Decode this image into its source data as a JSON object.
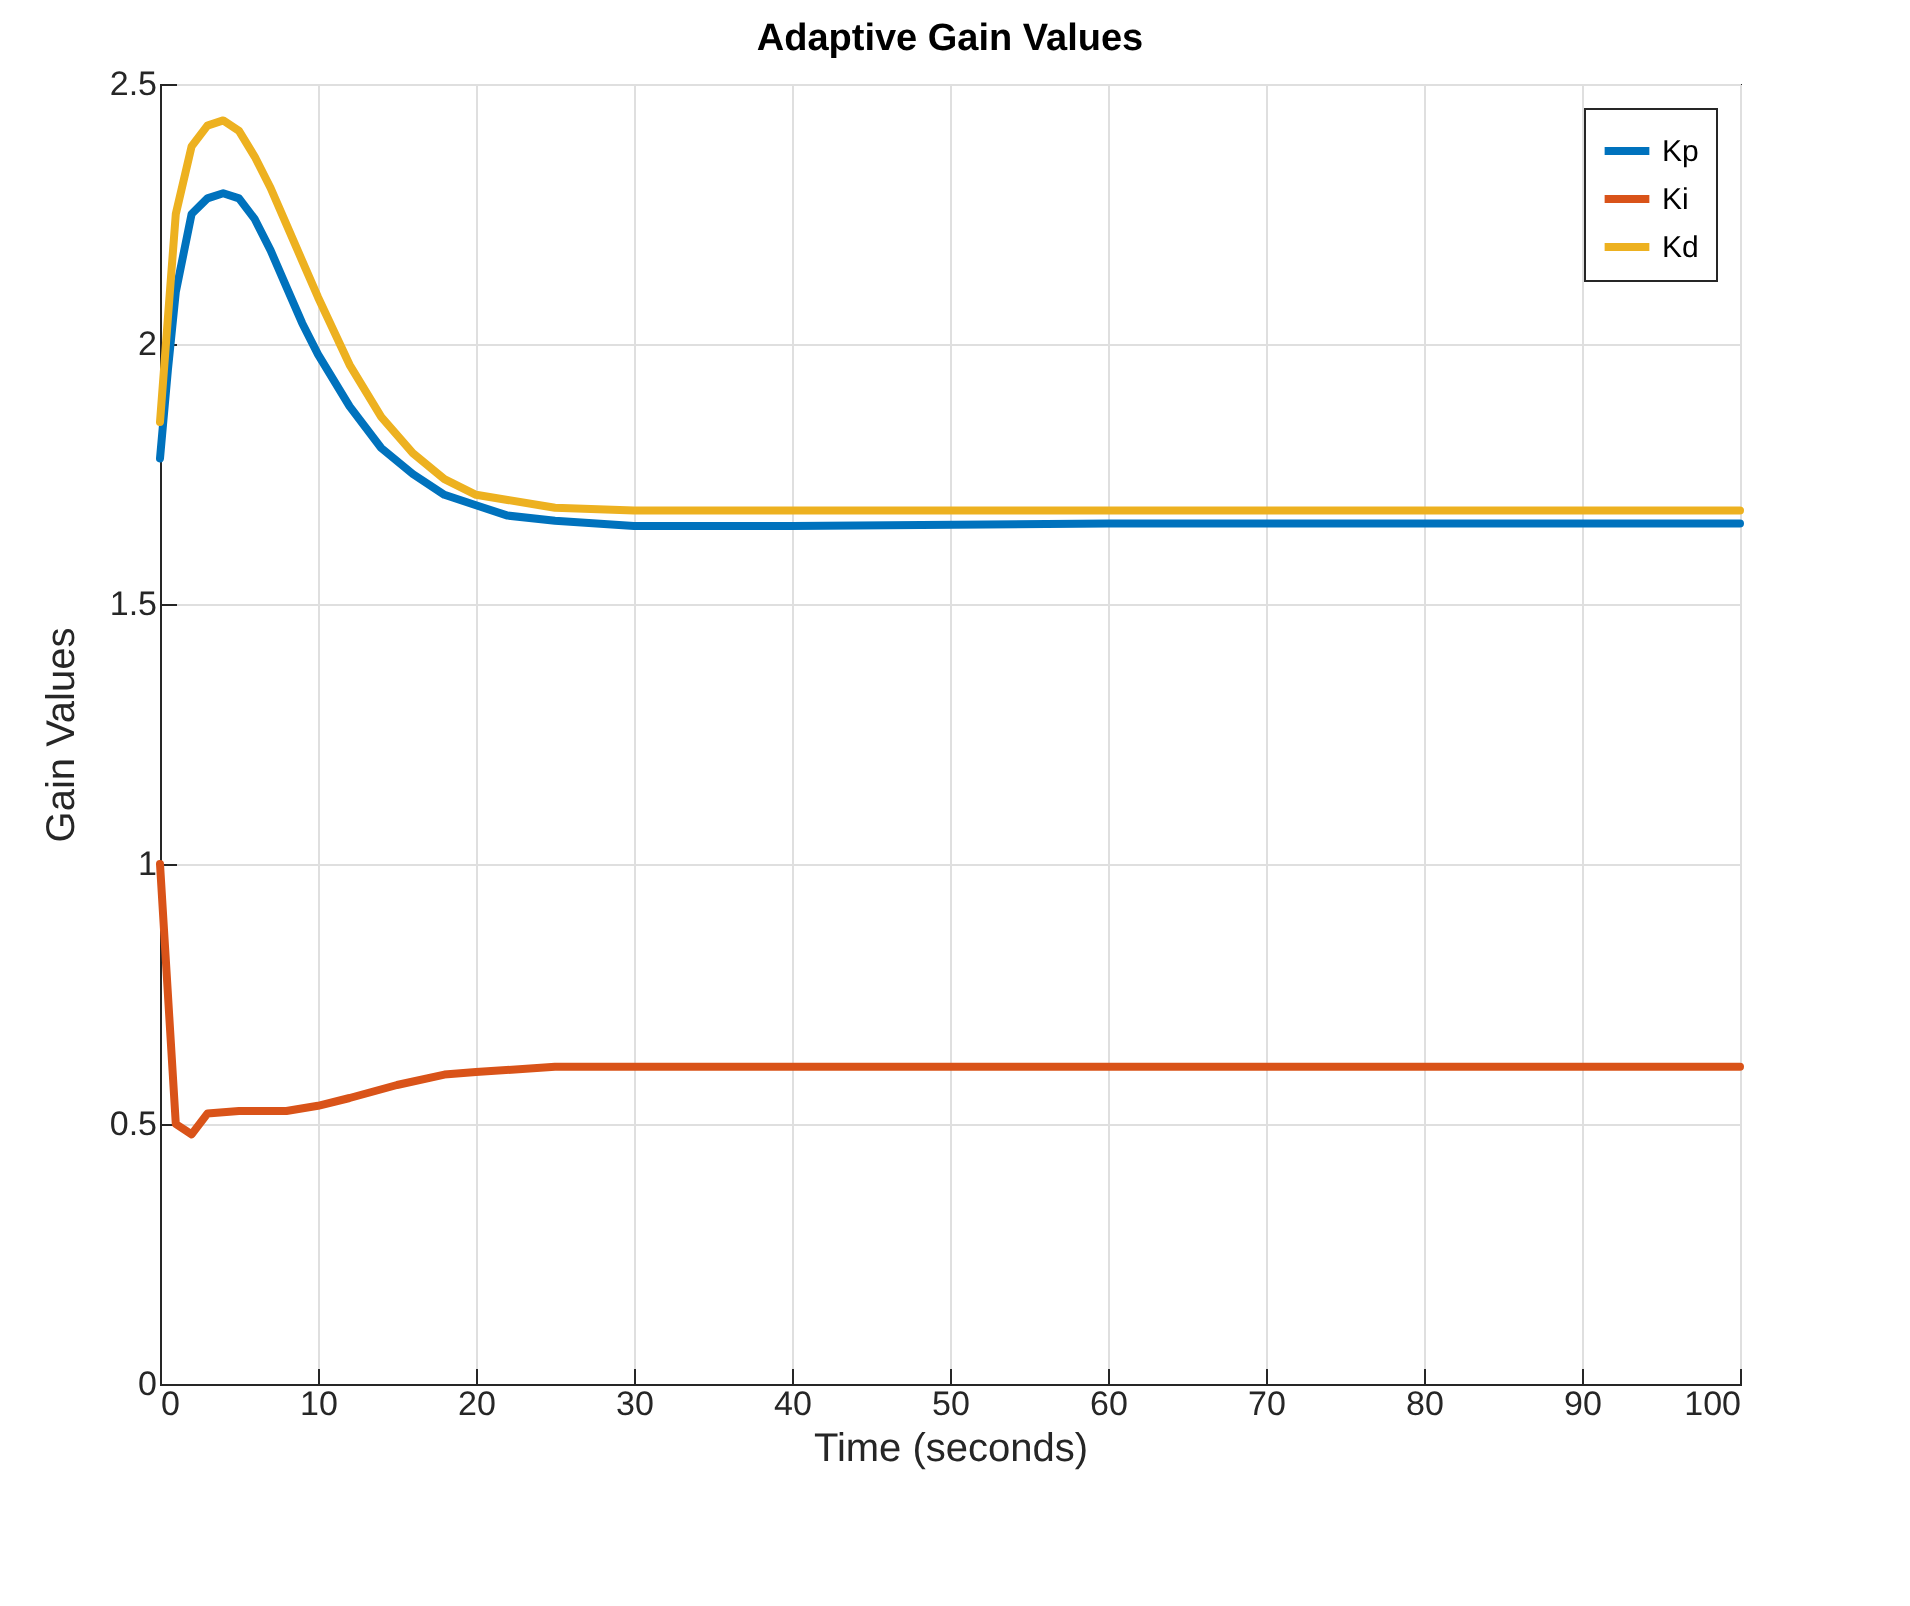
{
  "chart_data": {
    "type": "line",
    "title": "Adaptive Gain Values",
    "xlabel": "Time (seconds)",
    "ylabel": "Gain Values",
    "xlim": [
      0,
      100
    ],
    "xticks": [
      0,
      10,
      20,
      30,
      40,
      50,
      60,
      70,
      80,
      90,
      100
    ],
    "ylim": [
      0,
      2.5
    ],
    "yticks": [
      0,
      0.5,
      1,
      1.5,
      2,
      2.5
    ],
    "grid": true,
    "legend": "top right",
    "line_style": "solid",
    "series": [
      {
        "name": "Kp",
        "color": "#0072bd",
        "x": [
          0,
          0.5,
          1,
          2,
          3,
          4,
          5,
          6,
          7,
          8,
          9,
          10,
          12,
          14,
          16,
          18,
          20,
          22,
          25,
          30,
          40,
          60,
          80,
          100
        ],
        "values": [
          1.78,
          1.95,
          2.1,
          2.25,
          2.28,
          2.29,
          2.28,
          2.24,
          2.18,
          2.11,
          2.04,
          1.98,
          1.88,
          1.8,
          1.75,
          1.71,
          1.69,
          1.67,
          1.66,
          1.65,
          1.65,
          1.655,
          1.655,
          1.655
        ]
      },
      {
        "name": "Ki",
        "color": "#d95319",
        "x": [
          0,
          1,
          2,
          3,
          5,
          8,
          10,
          12,
          15,
          18,
          20,
          25,
          30,
          40,
          60,
          80,
          100
        ],
        "values": [
          1.0,
          0.5,
          0.48,
          0.52,
          0.525,
          0.525,
          0.535,
          0.55,
          0.575,
          0.595,
          0.6,
          0.61,
          0.61,
          0.61,
          0.61,
          0.61,
          0.61
        ]
      },
      {
        "name": "Kd",
        "color": "#edb120",
        "x": [
          0,
          0.5,
          1,
          2,
          3,
          4,
          5,
          6,
          7,
          8,
          9,
          10,
          12,
          14,
          16,
          18,
          20,
          22,
          25,
          30,
          40,
          60,
          80,
          100
        ],
        "values": [
          1.85,
          2.05,
          2.25,
          2.38,
          2.42,
          2.43,
          2.41,
          2.36,
          2.3,
          2.23,
          2.16,
          2.09,
          1.96,
          1.86,
          1.79,
          1.74,
          1.71,
          1.7,
          1.685,
          1.68,
          1.68,
          1.68,
          1.68,
          1.68
        ]
      }
    ]
  }
}
